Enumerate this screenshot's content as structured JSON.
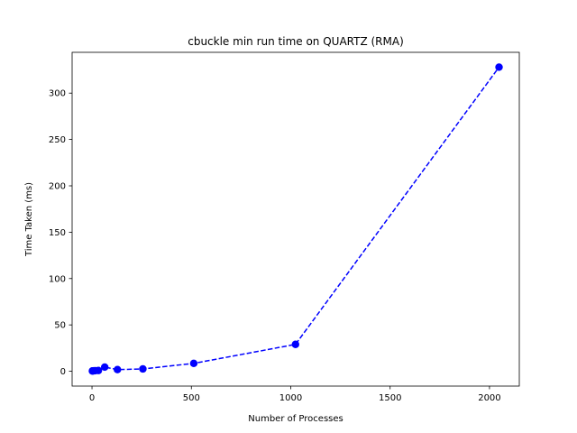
{
  "chart_data": {
    "type": "line",
    "title": "cbuckle min run time on QUARTZ (RMA)",
    "xlabel": "Number of Processes",
    "ylabel": "Time Taken (ms)",
    "xlim": [
      -100,
      2150
    ],
    "ylim": [
      -16,
      344
    ],
    "xticks": [
      0,
      500,
      1000,
      1500,
      2000
    ],
    "yticks": [
      0,
      50,
      100,
      150,
      200,
      250,
      300
    ],
    "grid": false,
    "series": [
      {
        "x": [
          2,
          4,
          8,
          16,
          32,
          64,
          128,
          256,
          512,
          1024,
          2048
        ],
        "y": [
          0.3,
          0.4,
          0.5,
          0.6,
          0.8,
          4.5,
          1.8,
          2.5,
          8.5,
          29,
          328
        ],
        "color": "#0000ff",
        "line_style": "dashed",
        "marker": "circle"
      }
    ]
  }
}
